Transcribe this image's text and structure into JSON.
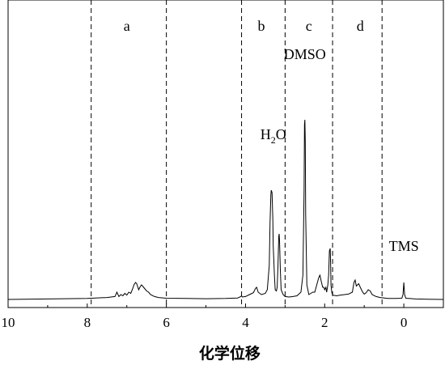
{
  "chart_data": {
    "type": "line",
    "title": "",
    "xlabel": "化学位移",
    "ylabel": "",
    "xlim": [
      10,
      -1
    ],
    "x_reversed": true,
    "xticks": [
      10,
      8,
      6,
      4,
      2,
      0
    ],
    "xtick_labels": [
      "10",
      "8",
      "6",
      "4",
      "2",
      "0"
    ],
    "grid": false,
    "legend": "none",
    "line_color": "#000000",
    "region_dividers": [
      7.9,
      6.0,
      4.1,
      3.0,
      1.8,
      0.55
    ],
    "regions": [
      {
        "label": "a",
        "x": 7.0
      },
      {
        "label": "b",
        "x": 3.6
      },
      {
        "label": "c",
        "x": 2.4
      },
      {
        "label": "d",
        "x": 1.1
      }
    ],
    "annotations": [
      {
        "text_main": "H",
        "text_sub": "2",
        "text_tail": "O",
        "x": 3.3,
        "y": 0.66
      },
      {
        "text": "DMSO",
        "x": 2.5,
        "y": 0.99
      },
      {
        "text": "TMS",
        "x": 0.0,
        "y": 0.2
      }
    ],
    "series": [
      {
        "x": [
          10.0,
          9.0,
          8.0,
          7.5,
          7.3,
          7.25,
          7.2,
          7.15,
          7.1,
          7.05,
          7.0,
          6.95,
          6.9,
          6.85,
          6.82,
          6.78,
          6.75,
          6.72,
          6.7,
          6.67,
          6.63,
          6.6,
          6.55,
          6.5,
          6.45,
          6.4,
          6.3,
          6.2,
          6.0,
          5.5,
          5.0,
          4.5,
          4.2,
          4.12,
          4.1,
          4.08,
          4.0,
          3.9,
          3.8,
          3.75,
          3.72,
          3.68,
          3.6,
          3.5,
          3.45,
          3.4,
          3.38,
          3.36,
          3.35,
          3.33,
          3.31,
          3.3,
          3.27,
          3.25,
          3.22,
          3.2,
          3.18,
          3.16,
          3.15,
          3.14,
          3.12,
          3.1,
          3.05,
          3.0,
          2.9,
          2.8,
          2.7,
          2.6,
          2.55,
          2.52,
          2.51,
          2.5,
          2.49,
          2.48,
          2.45,
          2.4,
          2.35,
          2.3,
          2.25,
          2.2,
          2.15,
          2.12,
          2.1,
          2.08,
          2.05,
          2.02,
          2.0,
          1.97,
          1.95,
          1.92,
          1.9,
          1.88,
          1.86,
          1.85,
          1.84,
          1.82,
          1.8,
          1.7,
          1.6,
          1.5,
          1.4,
          1.3,
          1.26,
          1.23,
          1.2,
          1.17,
          1.14,
          1.1,
          1.07,
          1.04,
          1.0,
          0.95,
          0.9,
          0.85,
          0.8,
          0.7,
          0.6,
          0.4,
          0.2,
          0.05,
          0.02,
          0.0,
          -0.02,
          -0.05,
          -0.3,
          -0.6,
          -1.0
        ],
        "y": [
          0.0,
          0.002,
          0.004,
          0.008,
          0.012,
          0.03,
          0.012,
          0.02,
          0.015,
          0.025,
          0.018,
          0.03,
          0.025,
          0.045,
          0.06,
          0.07,
          0.065,
          0.05,
          0.04,
          0.05,
          0.06,
          0.055,
          0.045,
          0.035,
          0.03,
          0.02,
          0.012,
          0.008,
          0.005,
          0.004,
          0.003,
          0.004,
          0.006,
          0.012,
          0.015,
          0.01,
          0.012,
          0.02,
          0.028,
          0.045,
          0.05,
          0.03,
          0.02,
          0.025,
          0.04,
          0.14,
          0.32,
          0.43,
          0.45,
          0.44,
          0.33,
          0.22,
          0.1,
          0.04,
          0.035,
          0.05,
          0.14,
          0.26,
          0.27,
          0.24,
          0.12,
          0.04,
          0.02,
          0.012,
          0.01,
          0.012,
          0.015,
          0.03,
          0.1,
          0.45,
          0.72,
          0.74,
          0.65,
          0.35,
          0.06,
          0.02,
          0.025,
          0.03,
          0.03,
          0.06,
          0.09,
          0.1,
          0.085,
          0.07,
          0.05,
          0.05,
          0.04,
          0.05,
          0.03,
          0.06,
          0.1,
          0.2,
          0.21,
          0.15,
          0.06,
          0.03,
          0.018,
          0.015,
          0.018,
          0.02,
          0.022,
          0.03,
          0.07,
          0.08,
          0.055,
          0.06,
          0.065,
          0.05,
          0.04,
          0.03,
          0.022,
          0.028,
          0.04,
          0.035,
          0.02,
          0.012,
          0.008,
          0.004,
          0.004,
          0.005,
          0.02,
          0.07,
          0.02,
          0.005,
          0.002,
          0.001,
          0.0
        ]
      }
    ]
  }
}
